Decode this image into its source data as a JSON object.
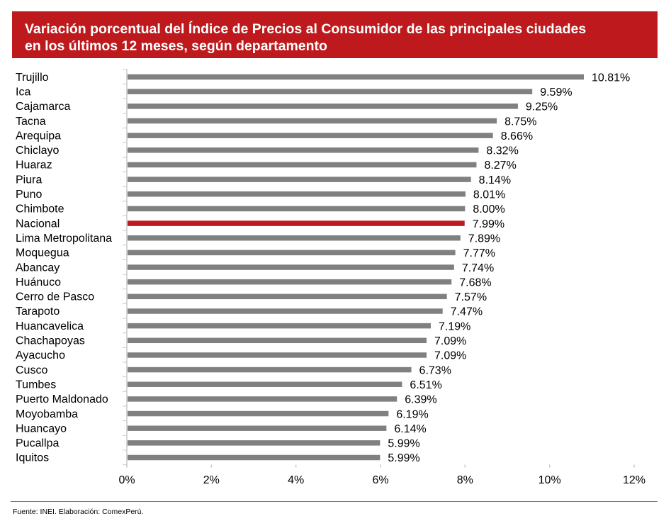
{
  "chart_data": {
    "type": "bar",
    "orientation": "horizontal",
    "title": "Variación porcentual del Índice de Precios al Consumidor de las principales ciudades en los últimos 12 meses, según departamento",
    "title_lines": [
      "Variación porcentual del Índice de Precios al Consumidor de las principales ciudades",
      "en los últimos 12 meses, según departamento"
    ],
    "categories": [
      "Trujillo",
      "Ica",
      "Cajamarca",
      "Tacna",
      "Arequipa",
      "Chiclayo",
      "Huaraz",
      "Piura",
      "Puno",
      "Chimbote",
      "Nacional",
      "Lima Metropolitana",
      "Moquegua",
      "Abancay",
      "Huánuco",
      "Cerro de Pasco",
      "Tarapoto",
      "Huancavelica",
      "Chachapoyas",
      "Ayacucho",
      "Cusco",
      "Tumbes",
      "Puerto Maldonado",
      "Moyobamba",
      "Huancayo",
      "Pucallpa",
      "Iquitos"
    ],
    "values": [
      10.81,
      9.59,
      9.25,
      8.75,
      8.66,
      8.32,
      8.27,
      8.14,
      8.01,
      8.0,
      7.99,
      7.89,
      7.77,
      7.74,
      7.68,
      7.57,
      7.47,
      7.19,
      7.09,
      7.09,
      6.73,
      6.51,
      6.39,
      6.19,
      6.14,
      5.99,
      5.99
    ],
    "value_labels": [
      "10.81%",
      "9.59%",
      "9.25%",
      "8.75%",
      "8.66%",
      "8.32%",
      "8.27%",
      "8.14%",
      "8.01%",
      "8.00%",
      "7.99%",
      "7.89%",
      "7.77%",
      "7.74%",
      "7.68%",
      "7.57%",
      "7.47%",
      "7.19%",
      "7.09%",
      "7.09%",
      "6.73%",
      "6.51%",
      "6.39%",
      "6.19%",
      "6.14%",
      "5.99%",
      "5.99%"
    ],
    "highlight": "Nacional",
    "xlim": [
      0,
      12
    ],
    "xticks": [
      0,
      2,
      4,
      6,
      8,
      10,
      12
    ],
    "xtick_labels": [
      "0%",
      "2%",
      "4%",
      "6%",
      "8%",
      "10%",
      "12%"
    ],
    "xlabel": "",
    "ylabel": "",
    "grid": false,
    "colors": {
      "bar": "#808080",
      "highlight": "#be1a1d",
      "title_bg": "#be1a1d"
    }
  },
  "footer": "Fuente: INEI. Elaboración: ComexPerú."
}
